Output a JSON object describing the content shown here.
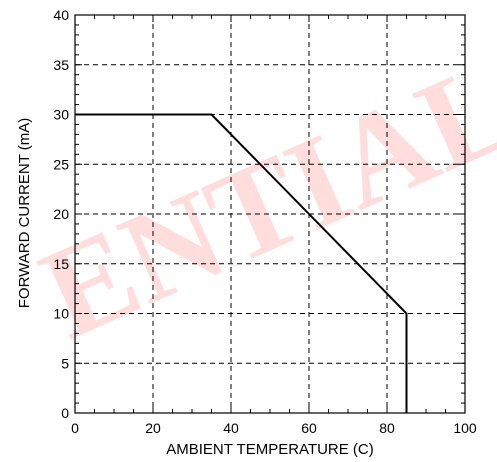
{
  "watermark": "ENTIAL",
  "colors": {
    "line": "#000000",
    "watermark": "#ff0000",
    "grid": "#000000"
  },
  "chart_data": {
    "type": "line",
    "title": "",
    "xlabel": "AMBIENT TEMPERATURE (C)",
    "ylabel": "FORWARD CURRENT (mA)",
    "xlim": [
      0,
      100
    ],
    "ylim": [
      0,
      40
    ],
    "xticks": [
      0,
      20,
      40,
      60,
      80,
      100
    ],
    "yticks": [
      0,
      5,
      10,
      15,
      20,
      25,
      30,
      35,
      40
    ],
    "xtick_labels": [
      "0",
      "20",
      "40",
      "60",
      "80",
      "100"
    ],
    "ytick_labels": [
      "0",
      "5",
      "10",
      "15",
      "20",
      "25",
      "30",
      "35",
      "40"
    ],
    "grid": true,
    "legend": "none",
    "series": [
      {
        "x": [
          0,
          35,
          85,
          85
        ],
        "y": [
          30,
          30,
          10,
          0
        ]
      }
    ]
  }
}
